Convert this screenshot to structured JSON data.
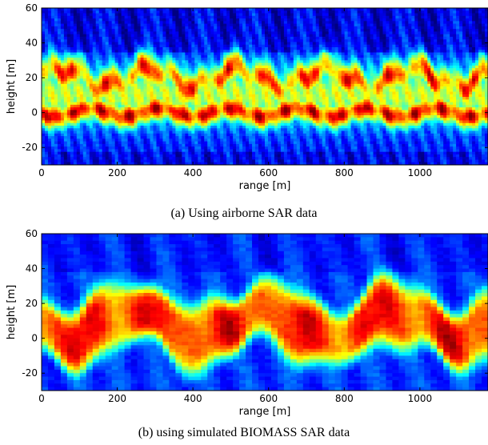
{
  "chart_data": [
    {
      "type": "heatmap",
      "caption": "(a) Using airborne SAR data",
      "xlabel": "range [m]",
      "ylabel": "height [m]",
      "xlim": [
        0,
        1180
      ],
      "ylim": [
        -30,
        60
      ],
      "xticks": [
        0,
        200,
        400,
        600,
        800,
        1000
      ],
      "yticks": [
        -20,
        0,
        20,
        40,
        60
      ],
      "colormap": "jet",
      "bands": [
        {
          "label": "canopy band",
          "height_center": 20,
          "intensity": 0.88
        },
        {
          "label": "ground band",
          "height_center": 0,
          "intensity": 0.97
        }
      ]
    },
    {
      "type": "heatmap",
      "caption": "(b) using simulated BIOMASS SAR data",
      "xlabel": "range [m]",
      "ylabel": "height [m]",
      "xlim": [
        0,
        1180
      ],
      "ylim": [
        -30,
        60
      ],
      "xticks": [
        0,
        200,
        400,
        600,
        800,
        1000
      ],
      "yticks": [
        -20,
        0,
        20,
        40,
        60
      ],
      "colormap": "jet",
      "bands": [
        {
          "label": "broad vegetation band",
          "height_center": 8,
          "intensity": 0.9
        }
      ]
    }
  ]
}
